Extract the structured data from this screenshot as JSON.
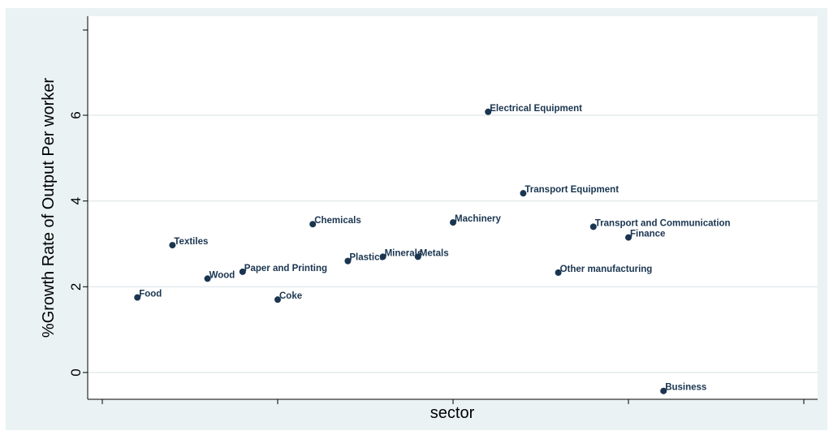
{
  "chart_data": {
    "type": "scatter",
    "title": "",
    "xlabel": "sector",
    "ylabel": "%Growth Rate of Output Per worker",
    "ylim": [
      -0.5,
      8.2
    ],
    "xlim": [
      0,
      20
    ],
    "yticks": [
      0,
      2,
      4,
      6
    ],
    "grid": true,
    "legend": "none",
    "point_color": "#1a3550",
    "points": [
      {
        "x": 1,
        "y": 1.75,
        "label": "Food"
      },
      {
        "x": 2,
        "y": 2.97,
        "label": "Textiles"
      },
      {
        "x": 3,
        "y": 2.19,
        "label": "Wood"
      },
      {
        "x": 4,
        "y": 2.35,
        "label": "Paper and Printing"
      },
      {
        "x": 5,
        "y": 1.7,
        "label": "Coke"
      },
      {
        "x": 6,
        "y": 3.46,
        "label": "Chemicals"
      },
      {
        "x": 7,
        "y": 2.6,
        "label": "Plastics"
      },
      {
        "x": 8,
        "y": 2.7,
        "label": "Minerals"
      },
      {
        "x": 9,
        "y": 2.7,
        "label": "Metals"
      },
      {
        "x": 10,
        "y": 3.5,
        "label": "Machinery"
      },
      {
        "x": 11,
        "y": 6.08,
        "label": "Electrical Equipment"
      },
      {
        "x": 12,
        "y": 4.18,
        "label": "Transport Equipment"
      },
      {
        "x": 13,
        "y": 2.33,
        "label": "Other manufacturing"
      },
      {
        "x": 14,
        "y": 3.4,
        "label": "Transport and Communication"
      },
      {
        "x": 15,
        "y": 3.15,
        "label": "Finance"
      },
      {
        "x": 16,
        "y": -0.43,
        "label": "Business"
      }
    ]
  }
}
